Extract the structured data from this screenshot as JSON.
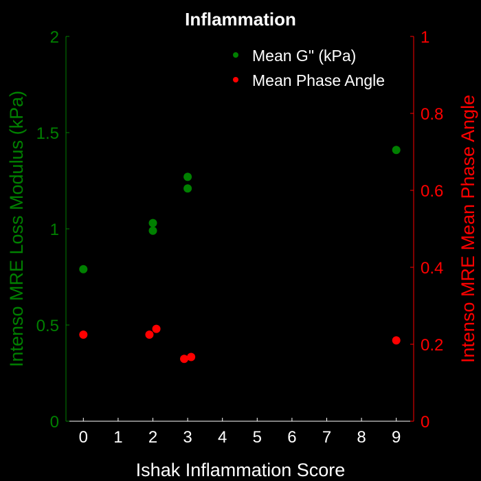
{
  "chart_data": {
    "type": "scatter",
    "title": "Inflammation",
    "xlabel": "Ishak Inflammation Score",
    "ylabel_left": "Intenso MRE Loss Modulus (kPa)",
    "ylabel_right": "Intenso MRE Mean Phase Angle",
    "xlim": [
      -0.5,
      9.5
    ],
    "ylim_left": [
      0,
      2
    ],
    "ylim_right": [
      0,
      1
    ],
    "x_ticks": [
      0,
      1,
      2,
      3,
      4,
      5,
      6,
      7,
      8,
      9
    ],
    "y_ticks_left": [
      0,
      0.5,
      1,
      1.5,
      2
    ],
    "y_ticks_left_labels": [
      "0",
      "0.5",
      "1",
      "1.5",
      "2"
    ],
    "y_ticks_right": [
      0,
      0.2,
      0.4,
      0.6,
      0.8,
      1
    ],
    "y_ticks_right_labels": [
      "0",
      "0.2",
      "0.4",
      "0.6",
      "0.8",
      "1"
    ],
    "legend_position": "top-right",
    "series": [
      {
        "name": "Mean G\" (kPa)",
        "axis": "left",
        "color": "#008000",
        "points": [
          {
            "x": 0,
            "y": 0.79
          },
          {
            "x": 2,
            "y": 0.99
          },
          {
            "x": 2,
            "y": 1.03
          },
          {
            "x": 3,
            "y": 1.21
          },
          {
            "x": 3,
            "y": 1.27
          },
          {
            "x": 9,
            "y": 1.41
          }
        ]
      },
      {
        "name": "Mean Phase Angle",
        "axis": "right",
        "color": "#ff0000",
        "points": [
          {
            "x": 0,
            "y": 0.225
          },
          {
            "x": 1.9,
            "y": 0.225
          },
          {
            "x": 2.1,
            "y": 0.24
          },
          {
            "x": 2.9,
            "y": 0.162
          },
          {
            "x": 3.1,
            "y": 0.167
          },
          {
            "x": 9,
            "y": 0.21
          }
        ]
      }
    ]
  }
}
